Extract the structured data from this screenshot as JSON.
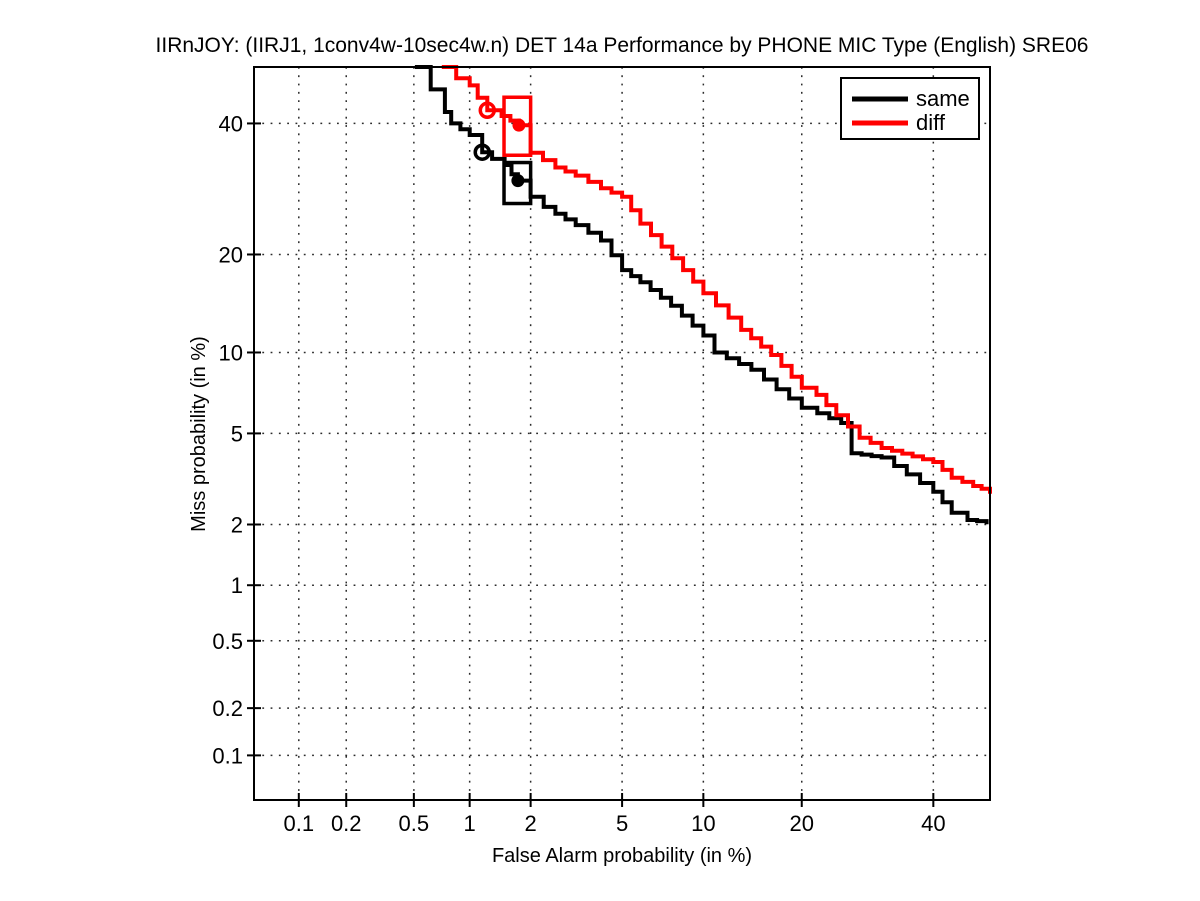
{
  "title": "IIRnJOY: (IIRJ1, 1conv4w-10sec4w.n) DET 14a Performance by PHONE MIC Type (English) SRE06",
  "chart_data": {
    "type": "line",
    "subtype": "DET curve, probit (normal-deviate) scale on both axes, staircase steps",
    "title": "IIRnJOY: (IIRJ1, 1conv4w-10sec4w.n) DET 14a Performance by PHONE MIC Type (English) SRE06",
    "xlabel": "False Alarm probability (in %)",
    "ylabel": "Miss probability (in %)",
    "xlim_pct": [
      0.05,
      50
    ],
    "ylim_pct": [
      0.05,
      50
    ],
    "grid": "dotted",
    "x_ticks": [
      {
        "value_pct": 0.1,
        "label": "0.1"
      },
      {
        "value_pct": 0.2,
        "label": "0.2"
      },
      {
        "value_pct": 0.5,
        "label": "0.5"
      },
      {
        "value_pct": 1,
        "label": "1"
      },
      {
        "value_pct": 2,
        "label": "2"
      },
      {
        "value_pct": 5,
        "label": "5"
      },
      {
        "value_pct": 10,
        "label": "10"
      },
      {
        "value_pct": 20,
        "label": "20"
      },
      {
        "value_pct": 40,
        "label": "40"
      }
    ],
    "y_ticks": [
      {
        "value_pct": 40,
        "label": "40"
      },
      {
        "value_pct": 20,
        "label": "20"
      },
      {
        "value_pct": 10,
        "label": "10"
      },
      {
        "value_pct": 5,
        "label": "5"
      },
      {
        "value_pct": 2,
        "label": "2"
      },
      {
        "value_pct": 1,
        "label": "1"
      },
      {
        "value_pct": 0.5,
        "label": "0.5"
      },
      {
        "value_pct": 0.2,
        "label": "0.2"
      },
      {
        "value_pct": 0.1,
        "label": "0.1"
      }
    ],
    "legend": {
      "position": "top-right",
      "entries": [
        {
          "label": "same",
          "color": "#000000"
        },
        {
          "label": "diff",
          "color": "#ff0000"
        }
      ]
    },
    "series": [
      {
        "name": "same",
        "color": "#000000",
        "points_fa_miss_pct": [
          [
            0.52,
            50
          ],
          [
            0.62,
            46
          ],
          [
            0.74,
            42
          ],
          [
            0.8,
            40
          ],
          [
            1.0,
            38
          ],
          [
            1.16,
            35.1
          ],
          [
            1.3,
            34
          ],
          [
            1.5,
            33
          ],
          [
            1.62,
            31.5
          ],
          [
            1.74,
            30.5
          ],
          [
            2.0,
            28
          ],
          [
            2.3,
            26.5
          ],
          [
            2.6,
            25.5
          ],
          [
            3.2,
            23.9
          ],
          [
            4.1,
            21.8
          ],
          [
            5.0,
            18.1
          ],
          [
            5.9,
            16.7
          ],
          [
            7.7,
            14.2
          ],
          [
            10.0,
            11.4
          ],
          [
            10.9,
            10.0
          ],
          [
            14.3,
            8.7
          ],
          [
            17.0,
            7.4
          ],
          [
            20.0,
            6.3
          ],
          [
            22.0,
            6.0
          ],
          [
            25.3,
            5.5
          ],
          [
            26.8,
            4.15
          ],
          [
            31.4,
            3.98
          ],
          [
            35.5,
            3.37
          ],
          [
            40.0,
            2.83
          ],
          [
            43.2,
            2.27
          ],
          [
            46.0,
            2.1
          ],
          [
            49.4,
            2.05
          ]
        ]
      },
      {
        "name": "diff",
        "color": "#ff0000",
        "points_fa_miss_pct": [
          [
            0.73,
            50
          ],
          [
            0.85,
            48
          ],
          [
            1.0,
            46.7
          ],
          [
            1.1,
            44.5
          ],
          [
            1.23,
            42.3
          ],
          [
            1.45,
            41.3
          ],
          [
            1.6,
            40.5
          ],
          [
            1.76,
            39.7
          ],
          [
            2.0,
            35.0
          ],
          [
            2.6,
            32.6
          ],
          [
            3.2,
            31.3
          ],
          [
            4.1,
            29.3
          ],
          [
            5.0,
            28.0
          ],
          [
            5.9,
            24.1
          ],
          [
            7.1,
            21.0
          ],
          [
            8.5,
            18.1
          ],
          [
            10.0,
            15.5
          ],
          [
            13.3,
            11.9
          ],
          [
            16.4,
            9.8
          ],
          [
            20.0,
            7.5
          ],
          [
            21.9,
            7.05
          ],
          [
            24.6,
            5.9
          ],
          [
            28.0,
            4.8
          ],
          [
            31.4,
            4.36
          ],
          [
            40.0,
            3.81
          ],
          [
            43.2,
            3.26
          ],
          [
            47.0,
            3.0
          ],
          [
            50.0,
            2.83
          ]
        ]
      }
    ],
    "markers": [
      {
        "series": "diff",
        "shape": "open-circle",
        "color": "#ff0000",
        "fa_pct": 1.23,
        "miss_pct": 42.3
      },
      {
        "series": "diff",
        "shape": "filled-dot",
        "color": "#ff0000",
        "fa_pct": 1.76,
        "miss_pct": 39.7
      },
      {
        "series": "diff",
        "shape": "rect-outline",
        "color": "#ff0000",
        "fa_range_pct": [
          1.49,
          2.0
        ],
        "miss_range_pct": [
          34.6,
          44.6
        ]
      },
      {
        "series": "same",
        "shape": "open-circle",
        "color": "#000000",
        "fa_pct": 1.16,
        "miss_pct": 35.1
      },
      {
        "series": "same",
        "shape": "filled-dot",
        "color": "#000000",
        "fa_pct": 1.74,
        "miss_pct": 30.5
      },
      {
        "series": "same",
        "shape": "rect-outline",
        "color": "#000000",
        "fa_range_pct": [
          1.49,
          2.0
        ],
        "miss_range_pct": [
          27.0,
          33.4
        ]
      }
    ]
  }
}
